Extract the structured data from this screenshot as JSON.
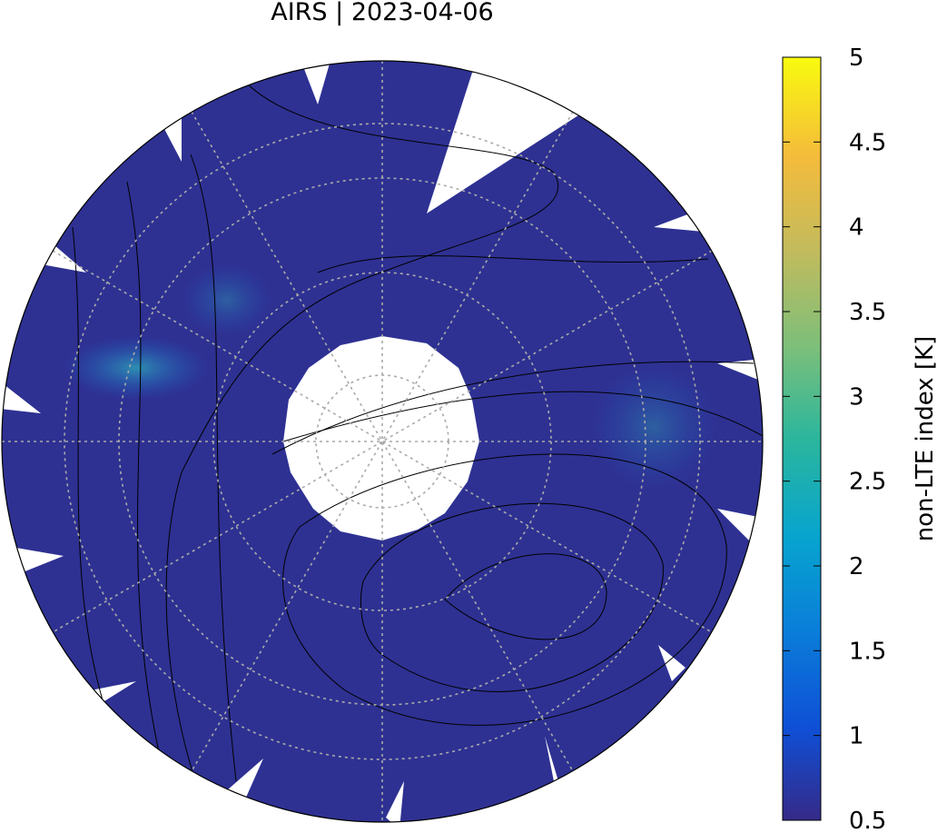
{
  "chart_data": {
    "type": "map",
    "title": "AIRS | 2023-04-06",
    "colorbar_label": "non-LTE index [K]",
    "clim": [
      0.5,
      5
    ],
    "cticks": [
      0.5,
      1,
      1.5,
      2,
      2.5,
      3,
      3.5,
      4,
      4.5,
      5
    ]
  }
}
